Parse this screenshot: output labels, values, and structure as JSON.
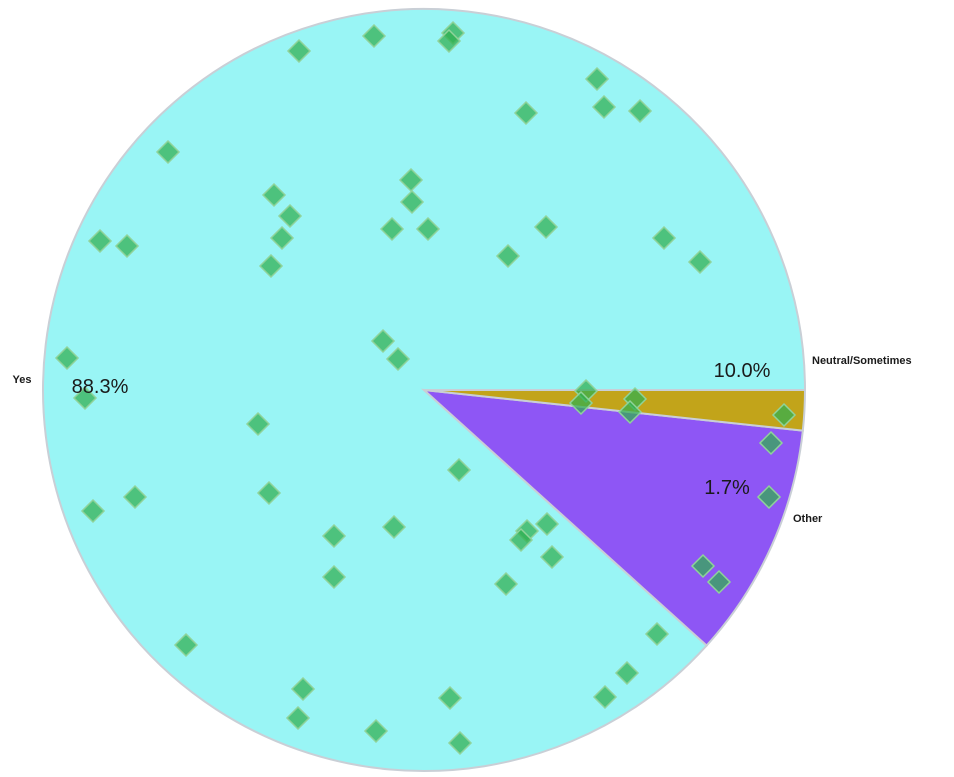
{
  "chart_data": {
    "type": "pie",
    "title": "",
    "slices": [
      {
        "label": "Yes",
        "value": 88.3,
        "value_label": "88.3%",
        "color": "#99f5f5"
      },
      {
        "label": "Neutral/Sometimes",
        "value": 10.0,
        "value_label": "10.0%",
        "color": "#8e56f5"
      },
      {
        "label": "Other",
        "value": 1.7,
        "value_label": "1.7%",
        "color": "#c2a41a"
      }
    ],
    "start_angle_deg": 0,
    "direction": "counterclockwise",
    "marker_color": "#2fae4f",
    "legend": "none"
  }
}
